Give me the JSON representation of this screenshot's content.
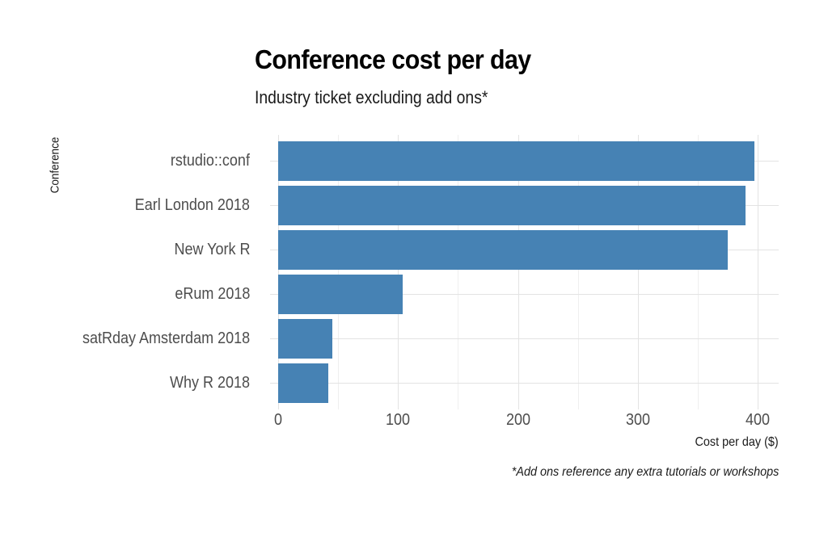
{
  "chart_data": {
    "type": "bar",
    "orientation": "horizontal",
    "title": "Conference cost per day",
    "subtitle": "Industry ticket excluding add ons*",
    "xlabel": "Cost per day ($)",
    "ylabel": "Conference",
    "caption": "*Add ons reference any extra tutorials or workshops",
    "categories": [
      "rstudio::conf",
      "Earl London 2018",
      "New York R",
      "eRum 2018",
      "satRday Amsterdam 2018",
      "Why R 2018"
    ],
    "values": [
      397,
      390,
      375,
      104,
      45,
      42
    ],
    "xlim": [
      0,
      415
    ],
    "xticks": [
      "0",
      "100",
      "200",
      "300",
      "400"
    ],
    "grid": true,
    "legend": "none",
    "bar_color": "#4682b4"
  }
}
